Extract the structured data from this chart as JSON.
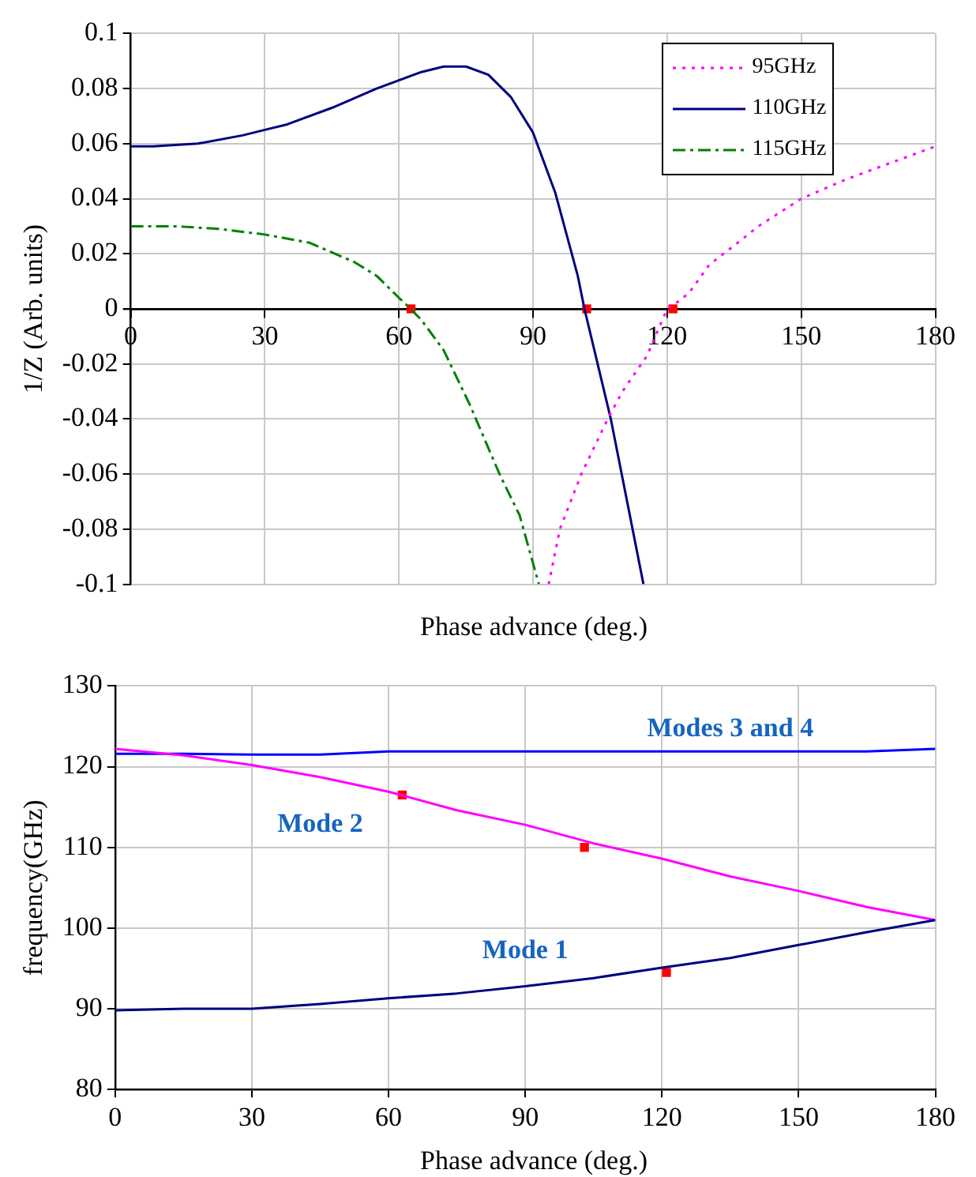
{
  "chart_data": [
    {
      "type": "line",
      "ylabel": "1/Z (Arb. units)",
      "xlabel": "Phase advance (deg.)",
      "xlim": [
        0,
        180
      ],
      "xticks": [
        0,
        30,
        60,
        90,
        120,
        150,
        180
      ],
      "ylim": [
        -0.1,
        0.1
      ],
      "yticks": [
        -0.1,
        -0.08,
        -0.06,
        -0.04,
        -0.02,
        0,
        0.02,
        0.04,
        0.06,
        0.08,
        0.1
      ],
      "grid": true,
      "legend": "top right",
      "marker": "none",
      "series": [
        {
          "name": "95GHz",
          "color": "#ff00ff",
          "line_style": "dotted",
          "x": [
            93.5,
            96,
            100.8,
            106.7,
            110,
            115.5,
            120,
            122.8,
            125,
            129.4,
            135,
            140.4,
            150,
            160,
            170,
            180
          ],
          "values": [
            -0.1,
            -0.08,
            -0.06,
            -0.04,
            -0.03,
            -0.017,
            0,
            0.003,
            0.006,
            0.016,
            0.023,
            0.03,
            0.04,
            0.047,
            0.053,
            0.059
          ]
        },
        {
          "name": "110GHz",
          "color": "#000080",
          "line_style": "solid",
          "x": [
            0,
            5,
            15,
            25,
            30,
            35,
            45,
            55,
            60,
            65,
            70,
            75,
            80,
            85,
            90,
            95,
            100,
            101.5,
            107.4,
            114.7
          ],
          "values": [
            0.059,
            0.059,
            0.06,
            0.063,
            0.065,
            0.067,
            0.073,
            0.08,
            0.083,
            0.086,
            0.088,
            0.088,
            0.085,
            0.077,
            0.064,
            0.042,
            0.012,
            0,
            -0.04,
            -0.1
          ]
        },
        {
          "name": "115GHz",
          "color": "#008000",
          "line_style": "dashed",
          "x": [
            0,
            10,
            20,
            30,
            40,
            50,
            55,
            60,
            62,
            65,
            70,
            75.9,
            82.5,
            87,
            91.3
          ],
          "values": [
            0.03,
            0.03,
            0.029,
            0.027,
            0.024,
            0.017,
            0.012,
            0.004,
            0.001,
            -0.004,
            -0.015,
            -0.035,
            -0.06,
            -0.075,
            -0.1
          ]
        },
        {
          "type": "scatter",
          "color": "#ff0000",
          "marker": "square",
          "x": [
            62.7,
            102,
            121.3
          ],
          "values": [
            0,
            0,
            0
          ]
        }
      ]
    },
    {
      "type": "line",
      "ylabel": "frequency(GHz)",
      "xlabel": "Phase advance (deg.)",
      "xlim": [
        0,
        180
      ],
      "xticks": [
        0,
        30,
        60,
        90,
        120,
        150,
        180
      ],
      "ylim": [
        80,
        130
      ],
      "yticks": [
        80,
        90,
        100,
        110,
        120,
        130
      ],
      "grid": true,
      "marker": "none",
      "series": [
        {
          "name": "Mode 1",
          "color": "#000080",
          "x": [
            0,
            15,
            30,
            45,
            60,
            75,
            90,
            105,
            120,
            135,
            150,
            165,
            180
          ],
          "values": [
            89.8,
            90,
            90,
            90.6,
            91.3,
            91.9,
            92.8,
            93.8,
            95.1,
            96.3,
            97.9,
            99.5,
            101
          ]
        },
        {
          "name": "Mode 2",
          "color": "#ff00ff",
          "x": [
            0,
            15,
            30,
            45,
            60,
            75,
            90,
            105,
            120,
            135,
            150,
            165,
            180
          ],
          "values": [
            122.2,
            121.4,
            120.2,
            118.7,
            116.9,
            114.6,
            112.8,
            110.5,
            108.6,
            106.4,
            104.6,
            102.6,
            101
          ]
        },
        {
          "name": "Modes 3 and 4",
          "color": "#0000ff",
          "x": [
            0,
            15,
            30,
            45,
            60,
            75,
            90,
            105,
            120,
            135,
            150,
            165,
            180
          ],
          "values": [
            121.6,
            121.6,
            121.5,
            121.5,
            121.9,
            121.9,
            121.9,
            121.9,
            121.9,
            121.9,
            121.9,
            121.9,
            122.2
          ]
        },
        {
          "type": "scatter",
          "color": "#ff0000",
          "marker": "square",
          "x": [
            63,
            103,
            121
          ],
          "values": [
            116.5,
            110,
            94.5
          ]
        }
      ]
    }
  ]
}
